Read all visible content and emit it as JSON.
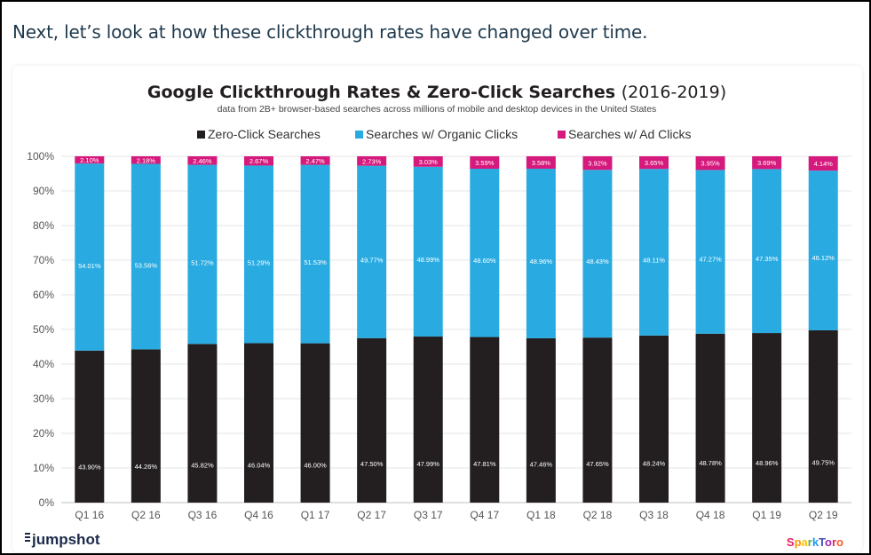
{
  "intro_text": "Next, let’s look at how these clickthrough rates have changed over time.",
  "chart_data": {
    "type": "bar",
    "stacked": true,
    "title": "Google Clickthrough Rates & Zero-Click Searches",
    "title_suffix": "(2016-2019)",
    "subtitle": "data from 2B+ browser-based searches across millions of mobile and desktop devices in the United States",
    "categories": [
      "Q1 16",
      "Q2 16",
      "Q3 16",
      "Q4 16",
      "Q1 17",
      "Q2 17",
      "Q3 17",
      "Q4 17",
      "Q1 18",
      "Q2 18",
      "Q3 18",
      "Q4 18",
      "Q1 19",
      "Q2 19"
    ],
    "series": [
      {
        "name": "Zero-Click Searches",
        "color": "#231f20",
        "values": [
          43.9,
          44.26,
          45.82,
          46.04,
          46.0,
          47.5,
          47.99,
          47.81,
          47.46,
          47.65,
          48.24,
          48.78,
          48.96,
          49.75
        ],
        "labels": [
          "43.90%",
          "44.26%",
          "45.82%",
          "46.04%",
          "46.00%",
          "47.50%",
          "47.99%",
          "47.81%",
          "47.46%",
          "47.65%",
          "48.24%",
          "48.78%",
          "48.96%",
          "49.75%"
        ]
      },
      {
        "name": "Searches w/ Organic Clicks",
        "color": "#29abe2",
        "values": [
          54.01,
          53.56,
          51.72,
          51.29,
          51.53,
          49.77,
          48.99,
          48.6,
          48.96,
          48.43,
          48.11,
          47.27,
          47.35,
          46.12
        ],
        "labels": [
          "54.01%",
          "53.56%",
          "51.72%",
          "51.29%",
          "51.53%",
          "49.77%",
          "48.99%",
          "48.60%",
          "48.96%",
          "48.43%",
          "48.11%",
          "47.27%",
          "47.35%",
          "46.12%"
        ]
      },
      {
        "name": "Searches w/ Ad Clicks",
        "color": "#d6197c",
        "values": [
          2.1,
          2.18,
          2.46,
          2.67,
          2.47,
          2.73,
          3.03,
          3.59,
          3.58,
          3.92,
          3.65,
          3.95,
          3.69,
          4.14
        ],
        "labels": [
          "2.10%",
          "2.18%",
          "2.46%",
          "2.67%",
          "2.47%",
          "2.73%",
          "3.03%",
          "3.59%",
          "3.58%",
          "3.92%",
          "3.65%",
          "3.95%",
          "3.69%",
          "4.14%"
        ]
      }
    ],
    "ylim": [
      0,
      100
    ],
    "yticks": [
      "0%",
      "10%",
      "20%",
      "30%",
      "40%",
      "50%",
      "60%",
      "70%",
      "80%",
      "90%",
      "100%"
    ],
    "grid": true,
    "legend_position": "top"
  },
  "logos": {
    "left": "jumpshot",
    "right": "SparkToro"
  }
}
